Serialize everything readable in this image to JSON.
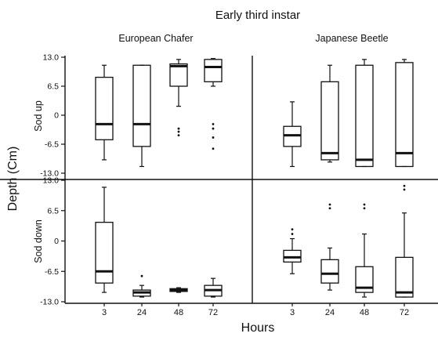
{
  "chart_data": {
    "type": "box",
    "title": "Early  third instar",
    "xlabel": "Hours",
    "ylabel": "Depth (Cm)",
    "column_titles": [
      "European Chafer",
      "Japanese Beetle"
    ],
    "row_labels": [
      "Sod up",
      "Sod down"
    ],
    "categories": [
      "3",
      "24",
      "48",
      "72"
    ],
    "ylim": [
      -13,
      13
    ],
    "y_ticks": [
      "13.0",
      "6.5",
      "0",
      "-6.5",
      "-13.0"
    ],
    "panels": [
      {
        "column": "European Chafer",
        "row": "Sod up",
        "boxes": [
          {
            "x": "3",
            "whisker_low": -10.0,
            "q1": -5.5,
            "median": -2.0,
            "q3": 8.5,
            "whisker_high": 11.2,
            "outliers": []
          },
          {
            "x": "24",
            "whisker_low": -11.5,
            "q1": -7.0,
            "median": -2.0,
            "q3": 11.2,
            "whisker_high": 11.2,
            "outliers": []
          },
          {
            "x": "48",
            "whisker_low": 2.0,
            "q1": 6.5,
            "median": 11.0,
            "q3": 11.5,
            "whisker_high": 12.5,
            "outliers": [
              -3.0,
              -3.7,
              -4.5
            ]
          },
          {
            "x": "72",
            "whisker_low": 6.5,
            "q1": 7.5,
            "median": 10.8,
            "q3": 12.5,
            "whisker_high": 12.7,
            "outliers": [
              -2.0,
              -3.0,
              -5.0,
              -7.5
            ]
          }
        ]
      },
      {
        "column": "Japanese Beetle",
        "row": "Sod up",
        "boxes": [
          {
            "x": "3",
            "whisker_low": -11.5,
            "q1": -7.0,
            "median": -4.5,
            "q3": -2.5,
            "whisker_high": 3.0,
            "outliers": []
          },
          {
            "x": "24",
            "whisker_low": -10.5,
            "q1": -10.0,
            "median": -8.5,
            "q3": 7.5,
            "whisker_high": 11.2,
            "outliers": []
          },
          {
            "x": "48",
            "whisker_low": -11.5,
            "q1": -11.5,
            "median": -10.0,
            "q3": 11.2,
            "whisker_high": 12.5,
            "outliers": []
          },
          {
            "x": "72",
            "whisker_low": -11.5,
            "q1": -11.5,
            "median": -8.5,
            "q3": 11.8,
            "whisker_high": 12.5,
            "outliers": []
          }
        ]
      },
      {
        "column": "European Chafer",
        "row": "Sod down",
        "boxes": [
          {
            "x": "3",
            "whisker_low": -11.0,
            "q1": -9.0,
            "median": -6.5,
            "q3": 4.0,
            "whisker_high": 11.5,
            "outliers": []
          },
          {
            "x": "24",
            "whisker_low": -12.0,
            "q1": -11.8,
            "median": -11.0,
            "q3": -10.5,
            "whisker_high": -9.5,
            "outliers": [
              -7.5
            ]
          },
          {
            "x": "48",
            "whisker_low": -11.0,
            "q1": -10.8,
            "median": -10.5,
            "q3": -10.2,
            "whisker_high": -10.0,
            "outliers": []
          },
          {
            "x": "72",
            "whisker_low": -12.0,
            "q1": -11.8,
            "median": -10.5,
            "q3": -9.5,
            "whisker_high": -8.0,
            "outliers": []
          }
        ]
      },
      {
        "column": "Japanese Beetle",
        "row": "Sod down",
        "boxes": [
          {
            "x": "3",
            "whisker_low": -7.0,
            "q1": -4.5,
            "median": -3.5,
            "q3": -2.0,
            "whisker_high": 0.5,
            "outliers": [
              1.5,
              2.5
            ]
          },
          {
            "x": "24",
            "whisker_low": -10.5,
            "q1": -9.0,
            "median": -7.0,
            "q3": -4.0,
            "whisker_high": -1.5,
            "outliers": [
              7.0,
              7.8
            ]
          },
          {
            "x": "48",
            "whisker_low": -12.0,
            "q1": -11.0,
            "median": -10.0,
            "q3": -5.5,
            "whisker_high": 1.5,
            "outliers": [
              7.0,
              7.8
            ]
          },
          {
            "x": "72",
            "whisker_low": -12.0,
            "q1": -12.0,
            "median": -11.0,
            "q3": -3.5,
            "whisker_high": 6.0,
            "outliers": [
              11.0,
              11.8
            ]
          }
        ]
      }
    ]
  }
}
